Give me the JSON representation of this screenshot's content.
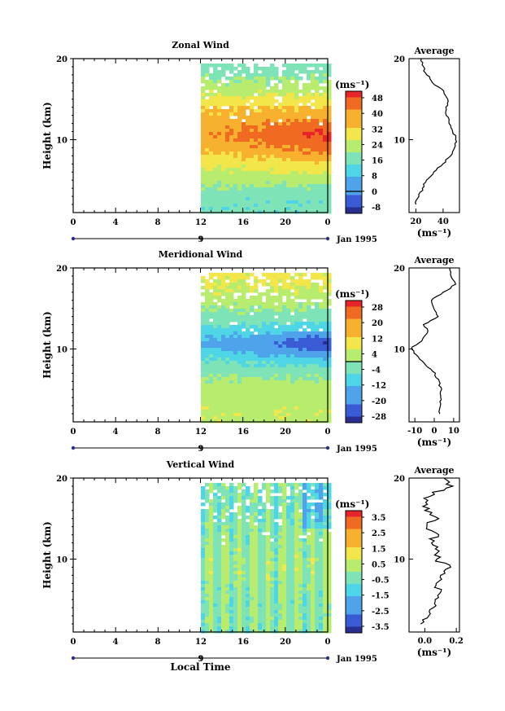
{
  "panels": [
    {
      "title": "Zonal Wind",
      "unit_label": "(ms⁻¹)",
      "colorbar_ticks": [
        "48",
        "40",
        "32",
        "24",
        "16",
        "8",
        "0",
        "-8"
      ],
      "avg_title": "Average",
      "avg_xticks": [
        "20",
        "40"
      ],
      "avg_unit": "(ms⁻¹)"
    },
    {
      "title": "Meridional Wind",
      "unit_label": "(ms⁻¹)",
      "colorbar_ticks": [
        "28",
        "20",
        "12",
        "4",
        "-4",
        "-12",
        "-20",
        "-28"
      ],
      "avg_title": "Average",
      "avg_xticks": [
        "-10",
        "0",
        "10"
      ],
      "avg_unit": "(ms⁻¹)"
    },
    {
      "title": "Vertical Wind",
      "unit_label": "(ms⁻¹)",
      "colorbar_ticks": [
        "3.5",
        "2.5",
        "1.5",
        "0.5",
        "-0.5",
        "-1.5",
        "-2.5",
        "-3.5"
      ],
      "avg_title": "Average",
      "avg_xticks": [
        "0.0",
        "0.2"
      ],
      "avg_unit": "(ms⁻¹)"
    }
  ],
  "shared": {
    "ylabel": "Height (km)",
    "yticks": [
      "20",
      "10"
    ],
    "avg_yticks": [
      "20",
      "10"
    ],
    "xticks": [
      "0",
      "4",
      "8",
      "12",
      "16",
      "20",
      "0"
    ],
    "day_label": "9",
    "date_label": "Jan 1995",
    "xlabel": "Local Time"
  },
  "chart_data": [
    {
      "type": "heatmap",
      "title": "Zonal Wind",
      "xlabel": "Local Time",
      "ylabel": "Height (km)",
      "colorbar_label": "(ms⁻¹)",
      "data_x_range": [
        12,
        24
      ],
      "ylim": [
        1,
        20
      ],
      "xlim": [
        0,
        24
      ],
      "colorbar_levels": [
        -8,
        0,
        8,
        16,
        24,
        32,
        40,
        48
      ],
      "description_of_field": [
        {
          "height": 3,
          "value": 14
        },
        {
          "height": 6,
          "value": 26
        },
        {
          "height": 9,
          "value": 40
        },
        {
          "height": 11,
          "value": 46
        },
        {
          "height": 14,
          "value": 36
        },
        {
          "height": 17,
          "value": 22
        },
        {
          "height": 19,
          "value": 16
        }
      ],
      "average_profile": {
        "x_label": "(ms⁻¹)",
        "x_ticks": [
          20,
          40
        ],
        "xlim": [
          15,
          52
        ],
        "y": [
          2,
          3,
          4,
          5,
          6,
          7,
          8,
          9,
          10,
          11,
          12,
          13,
          14,
          15,
          16,
          17,
          18,
          19,
          20
        ],
        "x": [
          20,
          22,
          25,
          28,
          33,
          40,
          45,
          48,
          50,
          47,
          44,
          43,
          42,
          44,
          40,
          33,
          28,
          25,
          24
        ]
      }
    },
    {
      "type": "heatmap",
      "title": "Meridional Wind",
      "xlabel": "Local Time",
      "ylabel": "Height (km)",
      "colorbar_label": "(ms⁻¹)",
      "data_x_range": [
        12,
        24
      ],
      "ylim": [
        1,
        20
      ],
      "xlim": [
        0,
        24
      ],
      "colorbar_levels": [
        -28,
        -20,
        -12,
        -4,
        4,
        12,
        20,
        28
      ],
      "description_of_field": [
        {
          "height": 3,
          "value": 6
        },
        {
          "height": 6,
          "value": 2
        },
        {
          "height": 9,
          "value": -8
        },
        {
          "height": 11,
          "value": -18
        },
        {
          "height": 14,
          "value": -4
        },
        {
          "height": 17,
          "value": 6
        },
        {
          "height": 19,
          "value": 10
        }
      ],
      "average_profile": {
        "x_label": "(ms⁻¹)",
        "x_ticks": [
          -10,
          0,
          10
        ],
        "xlim": [
          -13,
          13
        ],
        "y": [
          2,
          3,
          4,
          5,
          6,
          7,
          8,
          9,
          10,
          11,
          12,
          13,
          14,
          15,
          16,
          17,
          18,
          19,
          20
        ],
        "x": [
          3,
          3,
          3,
          4,
          2,
          0,
          -4,
          -8,
          -12,
          -7,
          -3,
          -5,
          2,
          0,
          -2,
          5,
          11,
          9,
          8
        ]
      }
    },
    {
      "type": "heatmap",
      "title": "Vertical Wind",
      "xlabel": "Local Time",
      "ylabel": "Height (km)",
      "colorbar_label": "(ms⁻¹)",
      "data_x_range": [
        12,
        24
      ],
      "ylim": [
        1,
        20
      ],
      "xlim": [
        0,
        24
      ],
      "colorbar_levels": [
        -3.5,
        -2.5,
        -1.5,
        -0.5,
        0.5,
        1.5,
        2.5,
        3.5
      ],
      "description_of_field": [
        {
          "height": 3,
          "value": -0.3
        },
        {
          "height": 6,
          "value": -0.2
        },
        {
          "height": 9,
          "value": 0.1
        },
        {
          "height": 11,
          "value": 0.0
        },
        {
          "height": 14,
          "value": -0.3
        },
        {
          "height": 17,
          "value": -0.6
        },
        {
          "height": 19,
          "value": -0.4
        }
      ],
      "average_profile": {
        "x_label": "(ms⁻¹)",
        "x_ticks": [
          0.0,
          0.2
        ],
        "xlim": [
          -0.1,
          0.22
        ],
        "y": [
          2,
          3,
          4,
          5,
          6,
          7,
          8,
          9,
          10,
          11,
          12,
          13,
          14,
          15,
          16,
          17,
          18,
          19,
          20
        ],
        "x": [
          -0.05,
          0.02,
          0.05,
          0.08,
          0.1,
          0.05,
          0.12,
          0.16,
          0.07,
          0.1,
          0.03,
          0.08,
          0.0,
          0.06,
          0.02,
          0.0,
          0.04,
          0.15,
          0.12
        ]
      }
    }
  ]
}
